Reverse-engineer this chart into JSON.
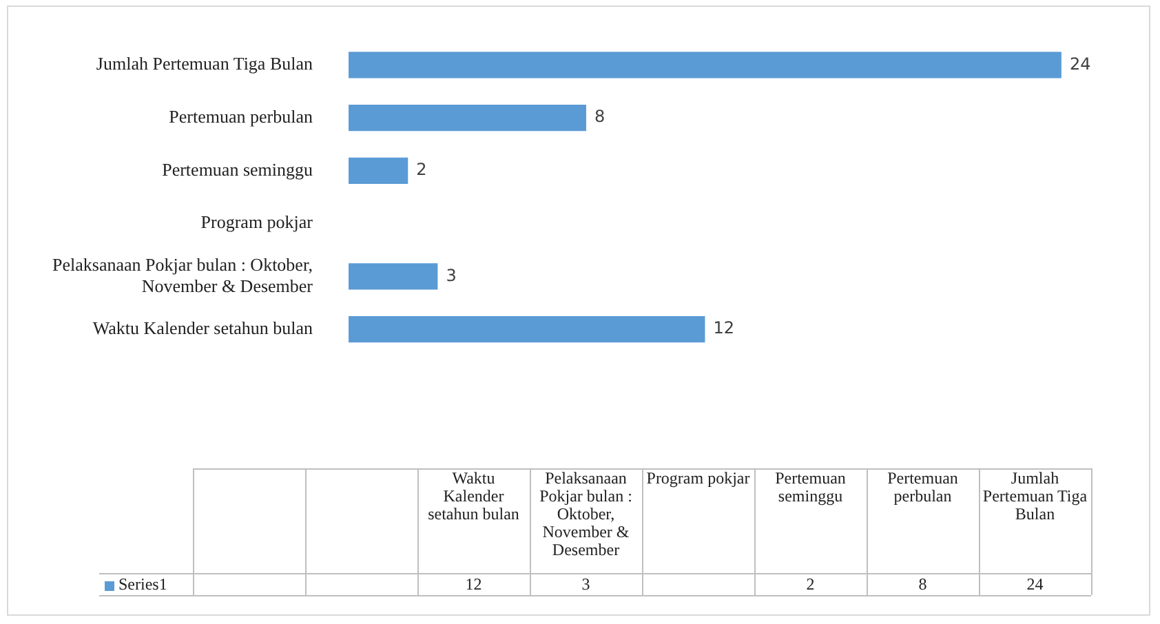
{
  "chart_data": {
    "type": "bar",
    "orientation": "horizontal",
    "categories": [
      "Jumlah Pertemuan Tiga Bulan",
      "Pertemuan perbulan",
      "Pertemuan seminggu",
      "Program pokjar",
      "Pelaksanaan Pokjar  bulan : Oktober, November & Desember",
      "Waktu Kalender setahun  bulan",
      null,
      null
    ],
    "series": [
      {
        "name": "Series1",
        "color": "#5b9bd5",
        "values": [
          24,
          8,
          2,
          null,
          3,
          12,
          null,
          null
        ],
        "value_labels": [
          "24",
          "8",
          "2",
          null,
          "3",
          "12",
          null,
          null
        ]
      }
    ],
    "legend": "bottom"
  }
}
